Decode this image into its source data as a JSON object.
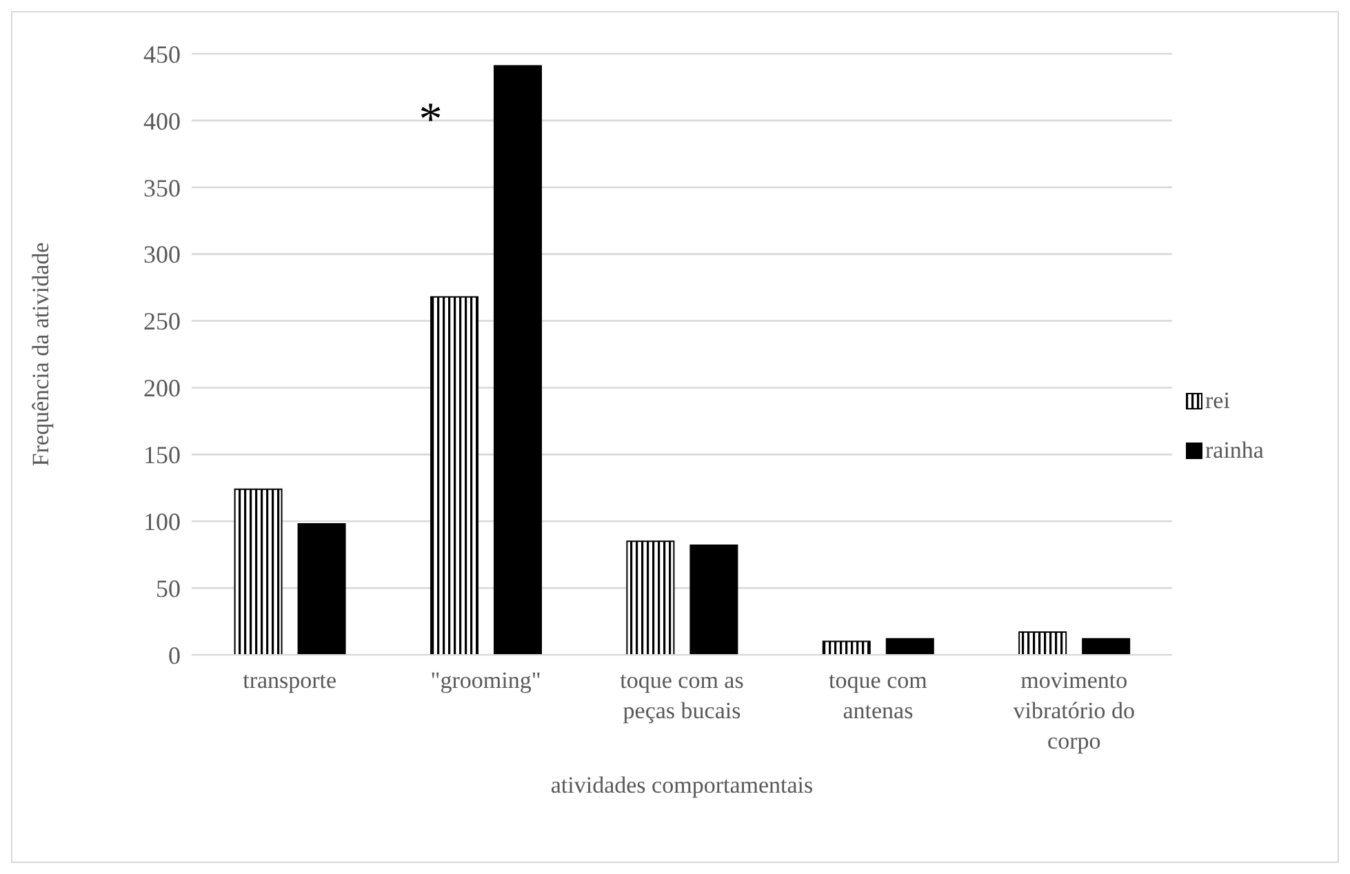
{
  "chart_data": {
    "type": "bar",
    "xlabel": "atividades comportamentais",
    "ylabel": "Frequência da atividade",
    "categories": [
      "transporte",
      "\"grooming\"",
      "toque com as peças bucais",
      "toque com antenas",
      "movimento vibratório do corpo"
    ],
    "series": [
      {
        "name": "rei",
        "color": "#000000",
        "values": [
          124,
          268,
          85,
          10,
          17
        ]
      },
      {
        "name": "rainha",
        "color": "#000000",
        "values": [
          98,
          441,
          82,
          12,
          12
        ]
      }
    ],
    "ylim": [
      0,
      450
    ],
    "yticks": [
      0,
      50,
      100,
      150,
      200,
      250,
      300,
      350,
      400,
      450
    ],
    "grid": "y",
    "legend": "right",
    "annotations": [
      "*"
    ]
  }
}
